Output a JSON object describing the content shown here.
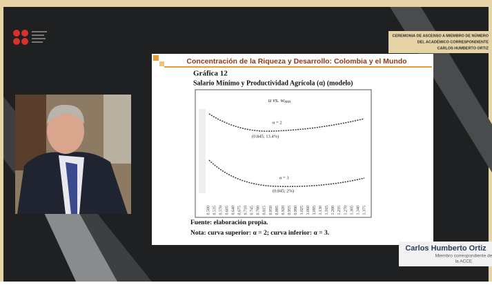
{
  "banner": {
    "lines": [
      "CEREMONIA DE ASCENSO A MIEMBRO DE NÚMERO",
      "DEL ACADÉMICO CORRESPONDIENTE",
      "CARLOS HUMBERTO ORTIZ"
    ]
  },
  "slide": {
    "header": "Concentración de la Riqueza y Desarrollo: Colombia y el Mundo",
    "figure_label": "Gráfica 12",
    "figure_title": "Salario Mínimo y Productividad Agrícola (α) (modelo)",
    "chart_title": "u vs. w",
    "chart_title_sub": "min",
    "annotations": [
      "α = 2",
      "(0.845; 13.4%)",
      "α = 3",
      "(0.845; 2%)"
    ],
    "x_labels": [
      "0.500",
      "0.535",
      "0.570",
      "0.605",
      "0.640",
      "0.675",
      "0.710",
      "0.745",
      "0.780",
      "0.815",
      "0.850",
      "0.885",
      "0.920",
      "0.955",
      "0.990",
      "1.025",
      "1.060",
      "1.095",
      "1.130",
      "1.165",
      "1.200",
      "1.235",
      "1.270",
      "1.305",
      "1.340",
      "1.375"
    ],
    "source": "Fuente: elaboración propia.",
    "note": "Nota: curva superior: α = 2; curva inferior: α = 3."
  },
  "nameplate": {
    "name": "Carlos Humberto Ortiz",
    "role": "Miembro correspondiente de",
    "org": "la ACCE"
  }
}
